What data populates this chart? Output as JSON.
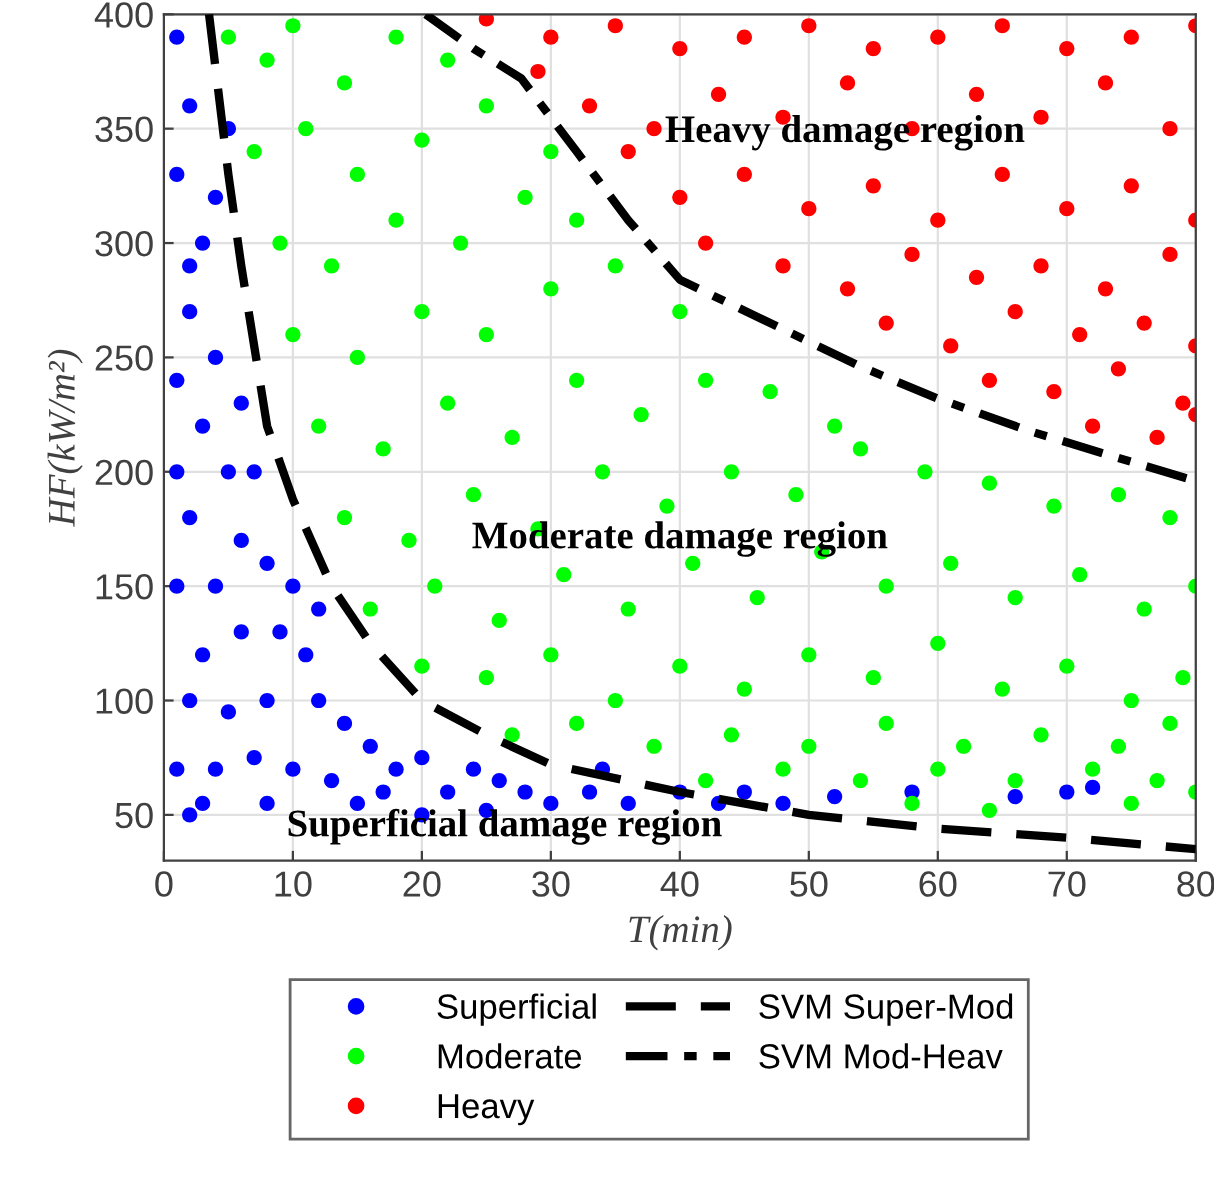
{
  "chart_data": {
    "type": "scatter",
    "xlabel": "T(min)",
    "ylabel": "HF(kW/m²)",
    "xlim": [
      0,
      80
    ],
    "ylim": [
      30,
      400
    ],
    "xticks": [
      0,
      10,
      20,
      30,
      40,
      50,
      60,
      70,
      80
    ],
    "yticks": [
      50,
      100,
      150,
      200,
      250,
      300,
      350,
      400
    ],
    "grid": true,
    "legend": "bottom",
    "marker": "circle",
    "annotations": [
      "Heavy damage region",
      "Moderate damage region",
      "Superficial damage region"
    ],
    "series": [
      {
        "name": "Superficial",
        "color": "#0000ff",
        "x": [
          1,
          2,
          1,
          3,
          2,
          1,
          4,
          3,
          1,
          5,
          2,
          6,
          4,
          1,
          8,
          3,
          6,
          9,
          11,
          2,
          5,
          8,
          12,
          14,
          1,
          4,
          7,
          10,
          13,
          16,
          18,
          20,
          22,
          24,
          26,
          28,
          30,
          33,
          36,
          40,
          45,
          48,
          52,
          58,
          66,
          70,
          72,
          3,
          8,
          15,
          20,
          25,
          2,
          5,
          4,
          2,
          6,
          7,
          10,
          12,
          17,
          34,
          43
        ],
        "values": [
          390,
          360,
          330,
          300,
          270,
          240,
          250,
          220,
          200,
          200,
          180,
          170,
          150,
          150,
          160,
          120,
          130,
          130,
          120,
          100,
          95,
          100,
          100,
          90,
          70,
          70,
          75,
          70,
          65,
          80,
          70,
          75,
          60,
          70,
          65,
          60,
          55,
          60,
          55,
          60,
          60,
          55,
          58,
          60,
          58,
          60,
          62,
          55,
          55,
          55,
          50,
          52,
          50,
          350,
          320,
          290,
          230,
          200,
          150,
          140,
          60,
          70,
          55
        ]
      },
      {
        "name": "Moderate",
        "color": "#00ff00",
        "x": [
          5,
          8,
          10,
          14,
          18,
          22,
          7,
          11,
          15,
          20,
          25,
          9,
          13,
          18,
          23,
          28,
          32,
          10,
          15,
          20,
          25,
          30,
          35,
          40,
          12,
          17,
          22,
          27,
          32,
          37,
          42,
          47,
          52,
          14,
          19,
          24,
          29,
          34,
          39,
          44,
          49,
          54,
          59,
          64,
          69,
          74,
          78,
          16,
          21,
          26,
          31,
          36,
          41,
          46,
          51,
          56,
          61,
          66,
          71,
          76,
          80,
          20,
          25,
          30,
          35,
          40,
          45,
          50,
          55,
          60,
          65,
          70,
          75,
          79,
          27,
          32,
          38,
          44,
          50,
          56,
          62,
          68,
          74,
          78,
          42,
          48,
          54,
          60,
          66,
          72,
          77,
          58,
          64,
          75,
          80,
          30
        ],
        "values": [
          390,
          380,
          395,
          370,
          390,
          380,
          340,
          350,
          330,
          345,
          360,
          300,
          290,
          310,
          300,
          320,
          310,
          260,
          250,
          270,
          260,
          280,
          290,
          270,
          220,
          210,
          230,
          215,
          240,
          225,
          240,
          235,
          220,
          180,
          170,
          190,
          175,
          200,
          185,
          200,
          190,
          210,
          200,
          195,
          185,
          190,
          180,
          140,
          150,
          135,
          155,
          140,
          160,
          145,
          165,
          150,
          160,
          145,
          155,
          140,
          150,
          115,
          110,
          120,
          100,
          115,
          105,
          120,
          110,
          125,
          105,
          115,
          100,
          110,
          85,
          90,
          80,
          85,
          80,
          90,
          80,
          85,
          80,
          90,
          65,
          70,
          65,
          70,
          65,
          70,
          65,
          55,
          52,
          55,
          60,
          340
        ]
      },
      {
        "name": "Heavy",
        "color": "#ff0000",
        "x": [
          25,
          30,
          35,
          40,
          45,
          50,
          55,
          60,
          65,
          70,
          75,
          80,
          33,
          38,
          43,
          48,
          53,
          58,
          63,
          68,
          73,
          78,
          40,
          45,
          50,
          55,
          60,
          65,
          70,
          75,
          80,
          48,
          53,
          58,
          63,
          68,
          73,
          78,
          56,
          61,
          66,
          71,
          76,
          80,
          64,
          69,
          74,
          79,
          72,
          77,
          80,
          29,
          36,
          42
        ],
        "values": [
          398,
          390,
          395,
          385,
          390,
          395,
          385,
          390,
          395,
          385,
          390,
          395,
          360,
          350,
          365,
          355,
          370,
          350,
          365,
          355,
          370,
          350,
          320,
          330,
          315,
          325,
          310,
          330,
          315,
          325,
          310,
          290,
          280,
          295,
          285,
          290,
          280,
          295,
          265,
          255,
          270,
          260,
          265,
          255,
          240,
          235,
          245,
          230,
          220,
          215,
          225,
          375,
          340,
          300
        ]
      },
      {
        "name": "SVM Super-Mod",
        "type": "line",
        "color": "#000000",
        "line_style": "dashed",
        "marker": "none",
        "x": [
          3.5,
          5,
          6,
          8,
          10,
          13,
          16,
          20,
          25,
          30,
          40,
          50,
          60,
          70,
          80
        ],
        "values": [
          400,
          330,
          290,
          220,
          188,
          150,
          125,
          100,
          85,
          72,
          60,
          50,
          44,
          40,
          35
        ]
      },
      {
        "name": "SVM Mod-Heav",
        "type": "line",
        "color": "#000000",
        "line_style": "dotted",
        "marker": "none",
        "x": [
          20.3,
          24,
          27.7,
          32,
          36,
          40,
          47,
          54,
          60,
          67,
          74,
          80
        ],
        "values": [
          400,
          385,
          372,
          340,
          310,
          284,
          265,
          246,
          232,
          218,
          206,
          196
        ]
      }
    ]
  }
}
